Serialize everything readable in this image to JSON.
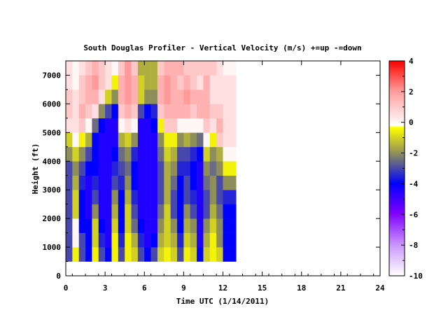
{
  "chart_data": {
    "type": "heatmap",
    "title": "South Douglas Profiler - Vertical Velocity (m/s) +=up -=down",
    "xlabel": "Time UTC (1/14/2011)",
    "ylabel": "Height (ft)",
    "xlim": [
      0,
      24
    ],
    "ylim": [
      0,
      7500
    ],
    "x_ticks": [
      "0",
      "3",
      "6",
      "9",
      "12",
      "15",
      "18",
      "21",
      "24"
    ],
    "y_ticks": [
      "0",
      "1000",
      "2000",
      "3000",
      "4000",
      "5000",
      "6000",
      "7000"
    ],
    "colorbar": {
      "range": [
        -10,
        4
      ],
      "ticks": [
        "4",
        "2",
        "0",
        "-2",
        "-4",
        "-6",
        "-8",
        "-10"
      ]
    },
    "data_coverage": {
      "x": [
        0,
        13
      ],
      "y": [
        500,
        7500
      ]
    },
    "grid": false,
    "series": [
      {
        "x_hours": [
          0,
          0.5,
          1,
          1.5,
          2,
          2.5,
          3,
          3.5,
          4,
          4.5,
          5,
          5.5,
          6,
          6.5,
          7,
          7.5,
          8,
          8.5,
          9,
          9.5,
          10,
          10.5,
          11,
          11.5,
          12,
          12.5
        ],
        "heights_ft": [
          500,
          1000,
          1500,
          2000,
          2500,
          3000,
          3500,
          4000,
          4500,
          5000,
          5500,
          6000,
          6500,
          7000
        ],
        "values_by_time": [
          [
            -3,
            -3,
            -3,
            -3,
            -3,
            -3,
            -3,
            -2,
            -1,
            0.5,
            1,
            1,
            0.5,
            0.5
          ],
          [
            -0.5,
            0,
            0,
            -1,
            -1,
            -1.5,
            -2,
            -1,
            0,
            0.5,
            0.5,
            0.5,
            0,
            0
          ],
          [
            -3,
            -3,
            -4,
            -4,
            -4,
            -3.5,
            -3,
            -2,
            -0.5,
            1,
            1.5,
            1,
            1,
            0.5
          ],
          [
            -4,
            -4,
            -4,
            -4.5,
            -4.5,
            -4.5,
            -4,
            -3,
            -1.5,
            0,
            1,
            1.5,
            1.5,
            1
          ],
          [
            -0.5,
            -1,
            -1,
            -2,
            -3,
            -3.5,
            -4,
            -4,
            -4,
            -2.5,
            0.5,
            1.5,
            2,
            1.5
          ],
          [
            -3,
            -3.5,
            -4,
            -4.5,
            -4.5,
            -4.5,
            -4.5,
            -4.5,
            -4.5,
            -4,
            -2,
            0.5,
            1,
            1
          ],
          [
            -4,
            -4.5,
            -4.5,
            -4.5,
            -4.5,
            -4.5,
            -4.5,
            -4.5,
            -4.5,
            -4.5,
            -3,
            -1,
            0.5,
            0.5
          ],
          [
            -0.5,
            -0.5,
            -1,
            -1.5,
            -2,
            -3,
            -3.5,
            -4,
            -4.5,
            -4.5,
            -4,
            -2,
            -0.5,
            0
          ],
          [
            -3,
            -3.5,
            -4,
            -4,
            -4,
            -3.5,
            -3,
            -2.5,
            -1.5,
            0,
            1,
            1.5,
            1.5,
            1
          ],
          [
            -0.5,
            -0.5,
            -1,
            -1,
            -1.5,
            -2,
            -2.5,
            -2,
            -1,
            0.5,
            1.5,
            2,
            2,
            2
          ],
          [
            -1,
            -1.5,
            -2.5,
            -3,
            -3.5,
            -4,
            -4,
            -3.5,
            -2,
            0,
            1,
            1.5,
            1.5,
            1
          ],
          [
            -3,
            -3.5,
            -4,
            -4.5,
            -4.5,
            -4.5,
            -4.5,
            -4.5,
            -4.5,
            -4.5,
            -3,
            -1,
            -1,
            -1.5
          ],
          [
            -4,
            -4.5,
            -4.5,
            -4.5,
            -4.5,
            -4.5,
            -4.5,
            -4.5,
            -4.5,
            -4.5,
            -4,
            -2,
            -1.5,
            -1.5
          ],
          [
            -3,
            -4,
            -4.5,
            -4.5,
            -4.5,
            -4.5,
            -4.5,
            -4.5,
            -4.5,
            -4,
            -3.5,
            -2,
            -1.5,
            -1.5
          ],
          [
            -1,
            -1.5,
            -2,
            -2.5,
            -3,
            -3,
            -3,
            -2.5,
            -2,
            -0.5,
            1,
            1.5,
            1.5,
            1
          ],
          [
            -0.5,
            -1,
            -1,
            -1,
            -1.5,
            -1.5,
            -1.5,
            -1,
            -0.5,
            1,
            1.5,
            2,
            2,
            1.5
          ],
          [
            -1,
            -1.5,
            -2,
            -3,
            -3,
            -2.5,
            -2,
            -1.5,
            -0.5,
            1,
            1.5,
            1.5,
            1.5,
            1.5
          ],
          [
            -3,
            -3.5,
            -4,
            -4,
            -4,
            -4,
            -3.5,
            -3,
            -2,
            0,
            1.5,
            1.5,
            1,
            1.5
          ],
          [
            -0.5,
            -1,
            -1.5,
            -2,
            -3,
            -3,
            -3.5,
            -3,
            -1.5,
            0,
            1.5,
            2,
            1.5,
            1
          ],
          [
            -1,
            -1.5,
            -2,
            -3,
            -3.5,
            -4,
            -4,
            -3.5,
            -2,
            0,
            1,
            1.5,
            1,
            1
          ],
          [
            -4,
            -4.5,
            -4.5,
            -4.5,
            -4.5,
            -4.5,
            -4.5,
            -4,
            -2.5,
            0,
            1.5,
            1.5,
            0.5,
            1
          ],
          [
            -1,
            -1.5,
            -2,
            -3,
            -3,
            -2.5,
            -2,
            -1,
            0,
            1,
            1.5,
            1.5,
            1.5,
            1
          ],
          [
            -0.5,
            -0.5,
            -1,
            -1.5,
            -2,
            -2,
            -2.5,
            -2,
            -0.5,
            0.5,
            1,
            0.5,
            0.5,
            1
          ],
          [
            -1,
            -2,
            -2,
            -2.5,
            -3,
            -3,
            -2,
            -1.5,
            1,
            1.5,
            1,
            0.5,
            0.5,
            0.5
          ],
          [
            -4,
            -4,
            -4,
            -4,
            -3.5,
            -2,
            -0.5,
            0,
            0.5,
            0.5,
            0.5,
            0.5,
            0.5,
            0
          ],
          [
            -4,
            -4,
            -4,
            -4,
            -3.5,
            -2,
            -0.5,
            0,
            0.5,
            0.5,
            0.5,
            0.5,
            0.5,
            0
          ]
        ]
      }
    ]
  }
}
